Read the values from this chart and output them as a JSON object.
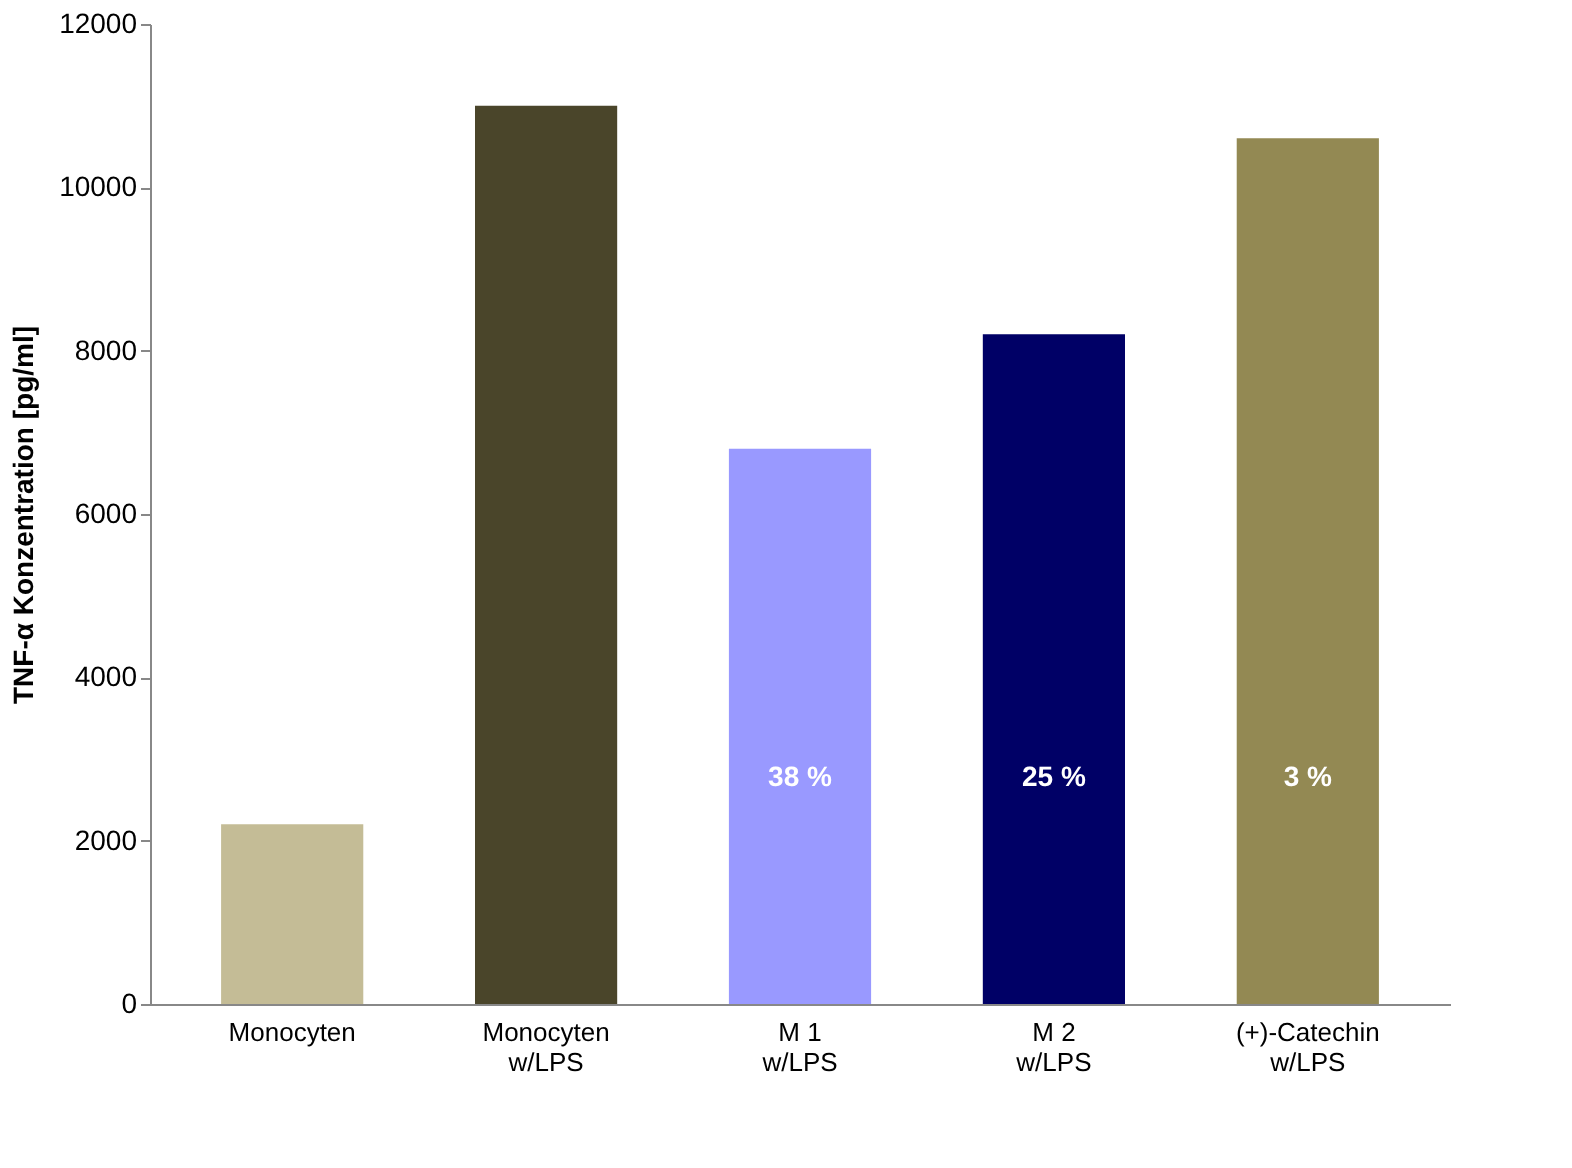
{
  "chart_data": {
    "type": "bar",
    "ylabel": "TNF-α Konzentration [pg/ml]",
    "categories": [
      "Monocyten",
      "Monocyten\nw/LPS",
      "M 1\nw/LPS",
      "M 2\nw/LPS",
      "(+)-Catechin\nw/LPS"
    ],
    "values": [
      2200,
      11000,
      6800,
      8200,
      10600
    ],
    "colors": [
      "#c4bc96",
      "#4a452a",
      "#9999ff",
      "#000066",
      "#938953"
    ],
    "ylim": [
      0,
      12000
    ],
    "yticks": [
      0,
      2000,
      4000,
      6000,
      8000,
      10000,
      12000
    ],
    "grid": false,
    "annotations": [
      "38 %",
      "25 %",
      "3 %"
    ]
  }
}
